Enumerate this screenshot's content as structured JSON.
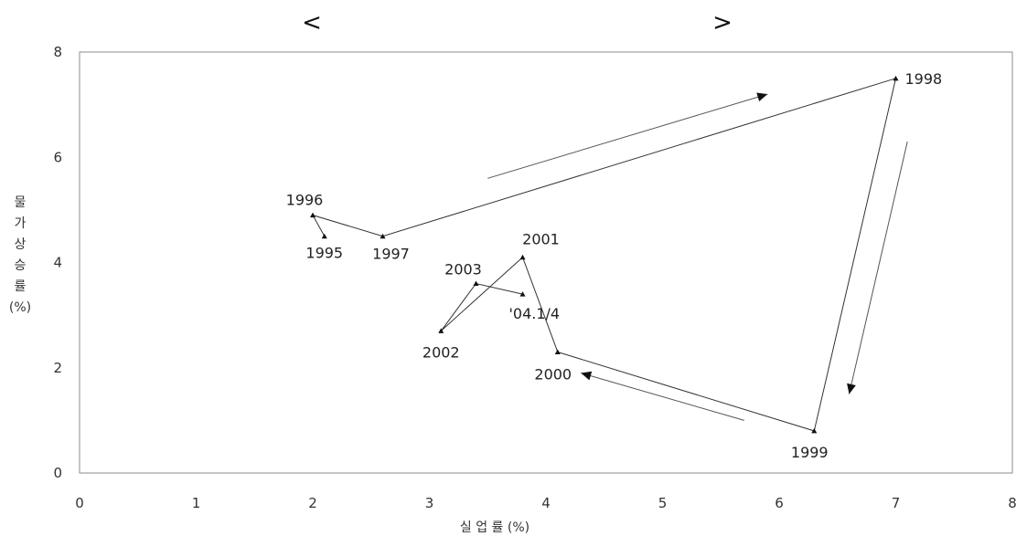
{
  "chart_data": {
    "type": "line",
    "title_left": "<",
    "title_right": ">",
    "xlabel": "실 업 률 (%)",
    "ylabel_lines": [
      "물",
      "가",
      "상",
      "승",
      "률",
      "(%)"
    ],
    "xlim": [
      0,
      8
    ],
    "ylim": [
      0,
      8
    ],
    "x_ticks": [
      "0",
      "1",
      "2",
      "3",
      "4",
      "5",
      "6",
      "7",
      "8"
    ],
    "y_ticks": [
      "0",
      "2",
      "4",
      "6",
      "8"
    ],
    "grid": false,
    "series": [
      {
        "points": [
          {
            "label": "1995",
            "x": 2.1,
            "y": 4.5
          },
          {
            "label": "1996",
            "x": 2.0,
            "y": 4.9
          },
          {
            "label": "1997",
            "x": 2.6,
            "y": 4.5
          },
          {
            "label": "1998",
            "x": 7.0,
            "y": 7.5
          },
          {
            "label": "1999",
            "x": 6.3,
            "y": 0.8
          },
          {
            "label": "2000",
            "x": 4.1,
            "y": 2.3
          },
          {
            "label": "2001",
            "x": 3.8,
            "y": 4.1
          },
          {
            "label": "2002",
            "x": 3.1,
            "y": 2.7
          },
          {
            "label": "2003",
            "x": 3.4,
            "y": 3.6
          },
          {
            "label": "'04.1/4",
            "x": 3.8,
            "y": 3.4
          }
        ]
      }
    ],
    "annotations": [
      {
        "from": [
          3.5,
          5.6
        ],
        "to": [
          5.9,
          7.2
        ]
      },
      {
        "from": [
          7.1,
          6.3
        ],
        "to": [
          6.6,
          1.5
        ]
      },
      {
        "from": [
          5.7,
          1.0
        ],
        "to": [
          4.3,
          1.9
        ]
      }
    ]
  }
}
